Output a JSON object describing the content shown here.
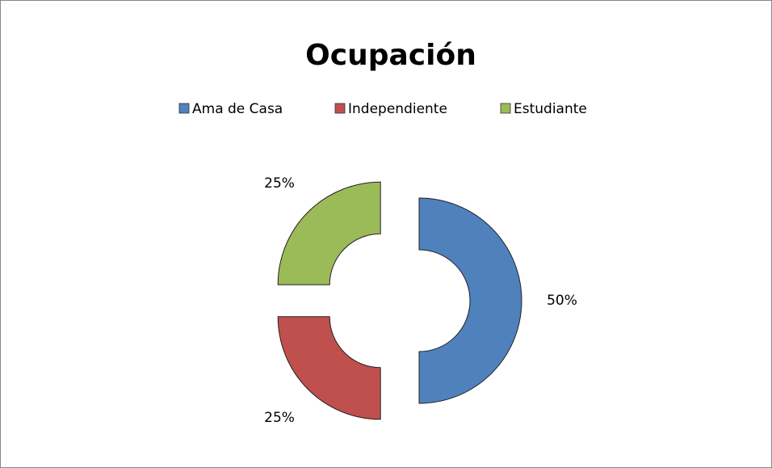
{
  "chart_data": {
    "type": "doughnut",
    "title": "Ocupación",
    "categories": [
      "Ama de Casa",
      "Independiente",
      "Estudiante"
    ],
    "values": [
      50,
      25,
      25
    ],
    "value_labels": [
      "50%",
      "25%",
      "25%"
    ],
    "colors": [
      "#4f81bd",
      "#c0504d",
      "#9bbb59"
    ],
    "legend": "top",
    "exploded": true
  }
}
